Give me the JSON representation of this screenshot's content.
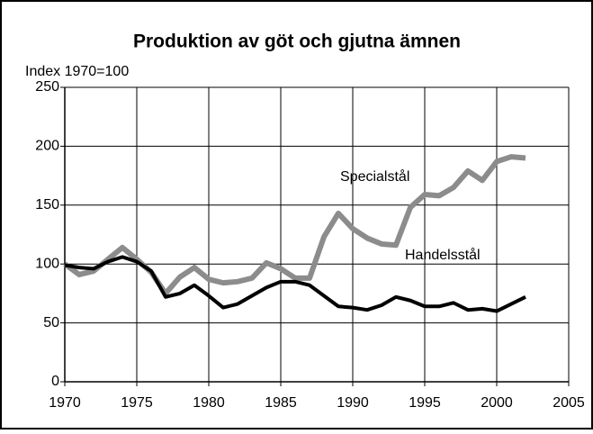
{
  "chart_data": {
    "type": "line",
    "title": "Produktion av göt och gjutna ämnen",
    "y_label": "Index 1970=100",
    "x": [
      1970,
      1971,
      1972,
      1973,
      1974,
      1975,
      1976,
      1977,
      1978,
      1979,
      1980,
      1981,
      1982,
      1983,
      1984,
      1985,
      1986,
      1987,
      1988,
      1989,
      1990,
      1991,
      1992,
      1993,
      1994,
      1995,
      1996,
      1997,
      1998,
      1999,
      2000,
      2001,
      2002
    ],
    "series": [
      {
        "name": "Specialstål",
        "color": "#8c8c8c",
        "values": [
          100,
          91,
          94,
          104,
          114,
          104,
          93,
          75,
          89,
          97,
          87,
          84,
          85,
          88,
          101,
          96,
          88,
          88,
          123,
          143,
          130,
          122,
          117,
          116,
          148,
          159,
          158,
          165,
          179,
          171,
          187,
          191,
          190
        ]
      },
      {
        "name": "Handelsstål",
        "color": "#000000",
        "values": [
          99,
          97,
          96,
          102,
          106,
          102,
          94,
          72,
          75,
          82,
          73,
          63,
          66,
          73,
          80,
          85,
          85,
          82,
          73,
          64,
          63,
          61,
          65,
          72,
          69,
          64,
          64,
          67,
          61,
          62,
          60,
          66,
          72
        ]
      }
    ],
    "xlim": [
      1970,
      2005
    ],
    "xticks": [
      1970,
      1975,
      1980,
      1985,
      1990,
      1995,
      2000,
      2005
    ],
    "ylim": [
      0,
      250
    ],
    "yticks": [
      0,
      50,
      100,
      150,
      200,
      250
    ],
    "grid": true
  }
}
